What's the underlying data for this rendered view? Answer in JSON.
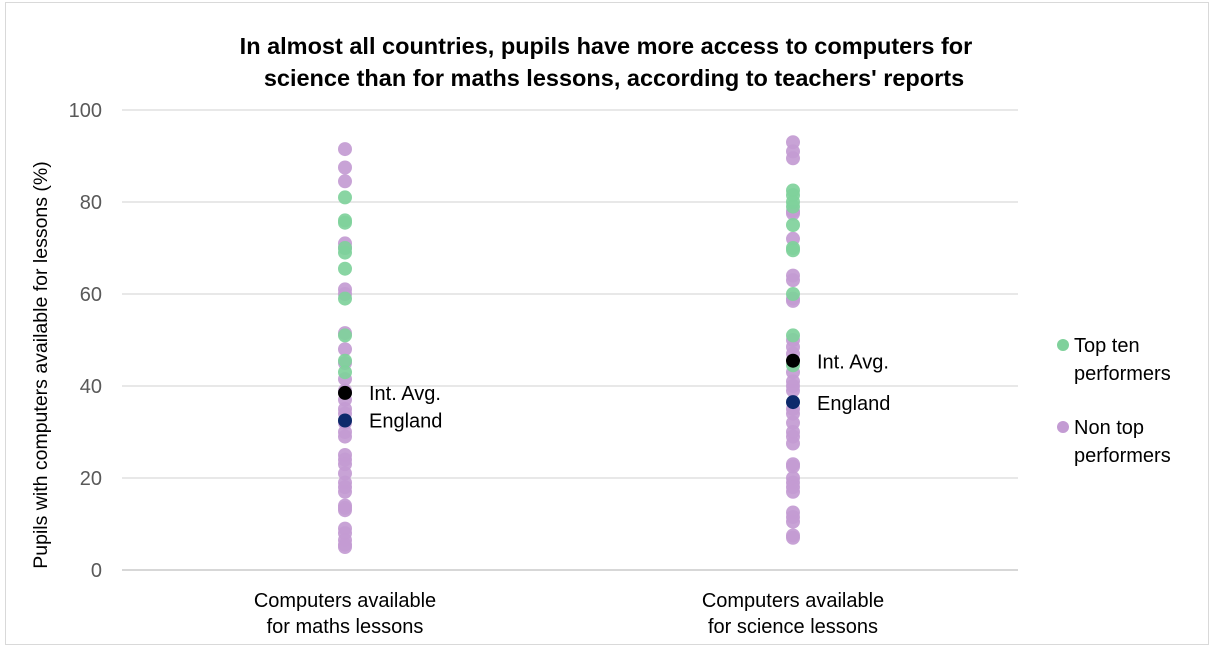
{
  "chart_data": {
    "type": "scatter",
    "title_lines": [
      "In almost all countries, pupils have more access to computers for",
      "science than for maths lessons, according to teachers' reports"
    ],
    "ylabel": "Pupils with computers available for lessons (%)",
    "ylim": [
      0,
      100
    ],
    "yticks": [
      0,
      20,
      40,
      60,
      80,
      100
    ],
    "grid": true,
    "legend_placement": "right",
    "categories": [
      {
        "lines": [
          "Computers available",
          "for maths lessons"
        ]
      },
      {
        "lines": [
          "Computers available",
          "for science lessons"
        ]
      }
    ],
    "series": [
      {
        "name": "Top ten performers",
        "legend_lines": [
          "Top ten",
          "performers"
        ],
        "color": "#7fd19b",
        "values": [
          [
            81,
            76,
            75.5,
            70,
            69,
            65.5,
            59,
            51,
            45.5,
            43
          ],
          [
            82.5,
            81.5,
            80,
            79,
            75,
            70,
            69.5,
            60,
            51,
            44.5
          ]
        ]
      },
      {
        "name": "Non top performers",
        "legend_lines": [
          "Non top",
          "performers"
        ],
        "color": "#c39bd3",
        "values": [
          [
            91.5,
            87.5,
            84.5,
            71,
            70,
            61,
            60,
            51.5,
            48,
            45,
            41.5,
            39,
            37,
            35,
            34,
            32,
            30,
            29,
            25,
            24,
            23,
            21,
            19,
            18,
            17,
            14,
            13.5,
            13,
            9,
            8,
            6.5,
            5.5,
            5
          ],
          [
            93,
            91,
            89.5,
            78,
            77.5,
            72,
            64,
            63,
            59,
            58.5,
            50,
            48.5,
            47,
            43,
            41,
            40,
            39,
            35,
            34,
            32,
            30,
            29,
            27.5,
            23,
            22.5,
            20,
            19,
            18,
            17,
            12.5,
            11.5,
            10.5,
            7.5,
            7
          ]
        ]
      }
    ],
    "highlights": [
      {
        "label": "Int. Avg.",
        "color": "#000000",
        "values": [
          38.5,
          45.5
        ]
      },
      {
        "label": "England",
        "color": "#0d2a6b",
        "values": [
          32.5,
          36.5
        ]
      }
    ]
  }
}
